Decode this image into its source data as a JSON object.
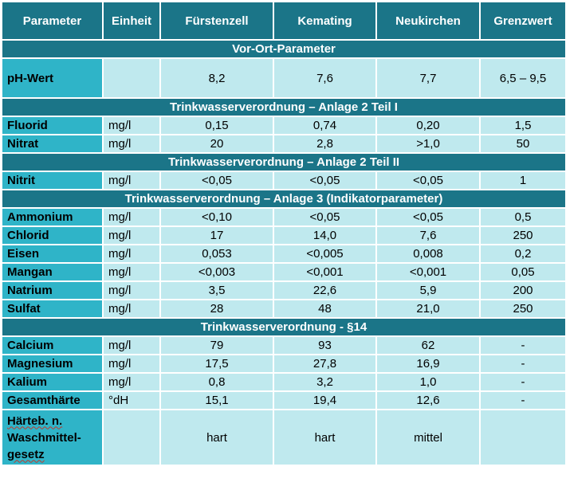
{
  "headers": [
    "Parameter",
    "Einheit",
    "Fürstenzell",
    "Kemating",
    "Neukirchen",
    "Grenzwert"
  ],
  "sections": [
    {
      "title": "Vor-Ort-Parameter",
      "rows": [
        {
          "name": "pH-Wert",
          "unit": "",
          "values": [
            "8,2",
            "7,6",
            "7,7",
            "6,5 – 9,5"
          ]
        }
      ]
    },
    {
      "title": "Trinkwasserverordnung – Anlage 2 Teil I",
      "rows": [
        {
          "name": "Fluorid",
          "unit": "mg/l",
          "values": [
            "0,15",
            "0,74",
            "0,20",
            "1,5"
          ]
        },
        {
          "name": "Nitrat",
          "unit": "mg/l",
          "values": [
            "20",
            "2,8",
            ">1,0",
            "50"
          ]
        }
      ]
    },
    {
      "title": "Trinkwasserverordnung – Anlage 2 Teil II",
      "rows": [
        {
          "name": "Nitrit",
          "unit": "mg/l",
          "values": [
            "<0,05",
            "<0,05",
            "<0,05",
            "1"
          ]
        }
      ]
    },
    {
      "title": "Trinkwasserverordnung – Anlage 3 (Indikatorparameter)",
      "rows": [
        {
          "name": "Ammonium",
          "unit": "mg/l",
          "values": [
            "<0,10",
            "<0,05",
            "<0,05",
            "0,5"
          ]
        },
        {
          "name": "Chlorid",
          "unit": "mg/l",
          "values": [
            "17",
            "14,0",
            "7,6",
            "250"
          ]
        },
        {
          "name": "Eisen",
          "unit": "mg/l",
          "values": [
            "0,053",
            "<0,005",
            "0,008",
            "0,2"
          ]
        },
        {
          "name": "Mangan",
          "unit": "mg/l",
          "values": [
            "<0,003",
            "<0,001",
            "<0,001",
            "0,05"
          ]
        },
        {
          "name": "Natrium",
          "unit": "mg/l",
          "values": [
            "3,5",
            "22,6",
            "5,9",
            "200"
          ]
        },
        {
          "name": "Sulfat",
          "unit": "mg/l",
          "values": [
            "28",
            "48",
            "21,0",
            "250"
          ]
        }
      ]
    },
    {
      "title": "Trinkwasserverordnung - §14",
      "rows": [
        {
          "name": "Calcium",
          "unit": "mg/l",
          "values": [
            "79",
            "93",
            "62",
            "-"
          ]
        },
        {
          "name": "Magnesium",
          "unit": "mg/l",
          "values": [
            "17,5",
            "27,8",
            "16,9",
            "-"
          ]
        },
        {
          "name": "Kalium",
          "unit": "mg/l",
          "values": [
            "0,8",
            "3,2",
            "1,0",
            "-"
          ]
        },
        {
          "name": "Gesamthärte",
          "unit": "°dH",
          "values": [
            "15,1",
            "19,4",
            "12,6",
            "-"
          ]
        }
      ]
    }
  ],
  "final_row": {
    "name_lines": [
      "Härteb. n.",
      "Waschmittel-",
      "gesetz"
    ],
    "unit": "",
    "values": [
      "hart",
      "hart",
      "mittel",
      ""
    ]
  }
}
